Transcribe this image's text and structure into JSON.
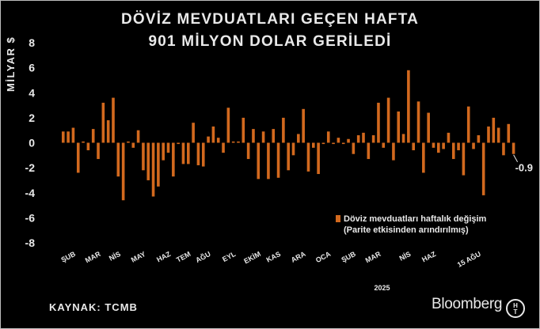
{
  "title_line1": "DÖVİZ MEVDUATLARI GEÇEN HAFTA",
  "title_line2": "901 MİLYON DOLAR GERİLEDİ",
  "source": "KAYNAK: TCMB",
  "brand": "Bloomberg",
  "logo": {
    "top": "H",
    "bottom": "T"
  },
  "colors": {
    "bar": "#d2691e",
    "background": "#000000",
    "text": "#e9e9e9"
  },
  "chart_data": {
    "type": "bar",
    "ylabel": "MİLYAR $",
    "ylim": [
      -8,
      8
    ],
    "yticks": [
      8,
      6,
      4,
      2,
      0,
      -2,
      -4,
      -6,
      -8
    ],
    "grid": false,
    "legend": {
      "placement": "right",
      "label_line1": "Döviz mevduatları haftalık değişim",
      "label_line2": "(Parite etkisinden arındırılmış)"
    },
    "series": [
      {
        "name": "Döviz mevduatları haftalık değişim (Parite etkisinden arındırılmış)",
        "values": [
          0.9,
          0.9,
          1.2,
          -2.4,
          0.1,
          -0.6,
          1.1,
          -1.3,
          3.2,
          1.8,
          3.6,
          -2.7,
          -4.6,
          0.1,
          -0.4,
          1.0,
          -2.2,
          -3.0,
          -4.3,
          -3.5,
          -1.4,
          -0.8,
          -2.7,
          -0.1,
          -1.7,
          -1.7,
          1.6,
          -1.8,
          -1.9,
          0.5,
          1.3,
          0.4,
          -0.8,
          2.8,
          0.1,
          0.1,
          2.0,
          -1.3,
          1.1,
          -2.9,
          0.9,
          -2.9,
          1.1,
          -2.8,
          2.0,
          -2.2,
          -1.0,
          0.7,
          2.7,
          -2.3,
          -0.4,
          -2.5,
          -0.1,
          0.9,
          -0.1,
          0.4,
          -0.1,
          0.3,
          -0.9,
          0.6,
          0.8,
          -1.3,
          0.6,
          3.2,
          -0.4,
          3.6,
          -1.4,
          2.5,
          0.7,
          5.8,
          -0.6,
          3.3,
          -2.4,
          2.4,
          -0.4,
          -0.8,
          -0.5,
          0.8,
          -1.3,
          -0.6,
          -2.6,
          2.9,
          -0.5,
          0.6,
          -4.2,
          1.3,
          2.0,
          1.2,
          -1.0,
          1.5,
          -0.9
        ]
      }
    ],
    "xtick_labels": [
      "ŞUB",
      "MAR",
      "NİS",
      "MAY",
      "HAZ",
      "TEM",
      "AĞU",
      "EYL",
      "EKİM",
      "KAS",
      "ARA",
      "OCA",
      "ŞUB",
      "MAR",
      "NİS",
      "HAZ",
      "15 AĞU"
    ],
    "xtick_bar_index": [
      1,
      6,
      10,
      15,
      20,
      24,
      28,
      33,
      38,
      42,
      47,
      52,
      57,
      62,
      68,
      73,
      82
    ],
    "year_label": "2025",
    "year_label_bar_index": 64,
    "annotation": {
      "text": "-0.9",
      "bar_index": 90
    }
  }
}
